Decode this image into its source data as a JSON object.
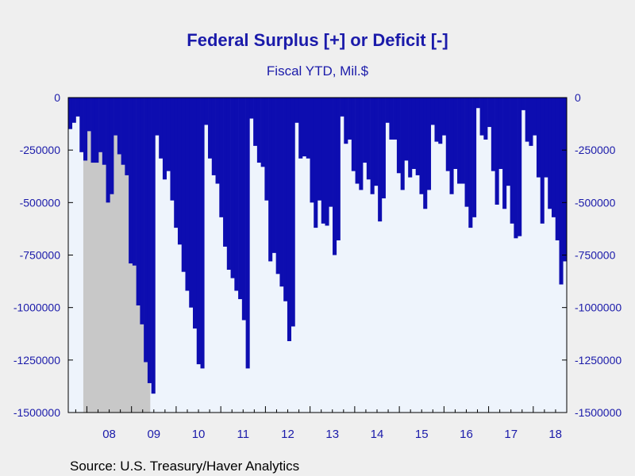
{
  "chart_data": {
    "type": "bar",
    "title": "Federal Surplus [+] or Deficit [-]",
    "subtitle": "Fiscal YTD, Mil.$",
    "source": "Source:  U.S. Treasury/Haver Analytics",
    "xlabel": "",
    "ylabel": "",
    "ylim": [
      -1500000,
      0
    ],
    "yticks": [
      "0",
      "-250000",
      "-500000",
      "-750000",
      "-1000000",
      "-1250000",
      "-1500000"
    ],
    "ytick_values": [
      0,
      -250000,
      -500000,
      -750000,
      -1000000,
      -1250000,
      -1500000
    ],
    "x_period_labels": [
      "08",
      "09",
      "10",
      "11",
      "12",
      "13",
      "14",
      "15",
      "16",
      "17",
      "18"
    ],
    "x_start": 2007.583,
    "x_end": 2018.75,
    "recession_shading": [
      [
        2007.92,
        2009.42
      ]
    ],
    "grid": false,
    "colors": {
      "bars": "#0d0db0",
      "plot_background": "#eef4fc",
      "recession": "#c8c8c8",
      "axis_text": "#1b1baa"
    },
    "series": [
      {
        "name": "Fiscal YTD",
        "values": [
          -150000,
          -120000,
          -90000,
          -260000,
          -300000,
          -160000,
          -310000,
          -310000,
          -260000,
          -320000,
          -500000,
          -460000,
          -180000,
          -270000,
          -320000,
          -370000,
          -790000,
          -800000,
          -990000,
          -1080000,
          -1260000,
          -1360000,
          -1410000,
          -180000,
          -290000,
          -390000,
          -350000,
          -490000,
          -620000,
          -700000,
          -830000,
          -920000,
          -1000000,
          -1100000,
          -1270000,
          -1290000,
          -130000,
          -290000,
          -370000,
          -410000,
          -570000,
          -710000,
          -820000,
          -860000,
          -920000,
          -960000,
          -1060000,
          -1290000,
          -100000,
          -230000,
          -310000,
          -330000,
          -490000,
          -780000,
          -740000,
          -840000,
          -900000,
          -970000,
          -1160000,
          -1090000,
          -120000,
          -290000,
          -280000,
          -290000,
          -500000,
          -620000,
          -490000,
          -600000,
          -610000,
          -520000,
          -750000,
          -680000,
          -90000,
          -220000,
          -200000,
          -350000,
          -410000,
          -440000,
          -310000,
          -390000,
          -460000,
          -420000,
          -590000,
          -480000,
          -120000,
          -200000,
          -200000,
          -360000,
          -440000,
          -300000,
          -380000,
          -340000,
          -370000,
          -460000,
          -530000,
          -440000,
          -130000,
          -210000,
          -220000,
          -180000,
          -350000,
          -460000,
          -340000,
          -410000,
          -410000,
          -520000,
          -620000,
          -570000,
          -50000,
          -180000,
          -200000,
          -140000,
          -350000,
          -510000,
          -340000,
          -530000,
          -420000,
          -600000,
          -670000,
          -660000,
          -60000,
          -210000,
          -230000,
          -180000,
          -380000,
          -600000,
          -380000,
          -530000,
          -570000,
          -680000,
          -890000,
          -780000
        ]
      }
    ]
  }
}
